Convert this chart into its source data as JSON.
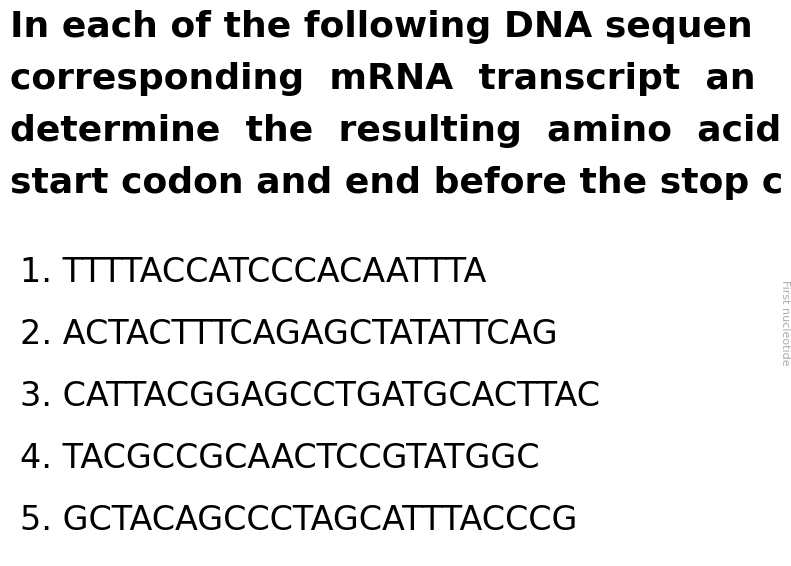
{
  "background_color": "#ffffff",
  "title_lines": [
    "In each of the following DNA sequen",
    "corresponding  mRNA  transcript  an",
    "determine  the  resulting  amino  acid",
    "start codon and end before the stop c"
  ],
  "items": [
    "1. TTTTACCATCCCACAATTTA",
    "2. ACTACTTTCAGAGCTATATTCAG",
    "3. CATTACGGAGCCTGATGCACTTAC",
    "4. TACGCCGCAACTCCGTATGGC",
    "5. GCTACAGCCCTAGCATTTACCCG"
  ],
  "side_text": "First nucleotide",
  "title_fontsize": 26,
  "item_fontsize": 24,
  "title_font_weight": "bold",
  "title_font_family": "DejaVu Sans",
  "item_font_family": "DejaVu Sans",
  "text_color": "#000000",
  "side_text_color": "#aaaaaa",
  "side_text_fontsize": 8
}
